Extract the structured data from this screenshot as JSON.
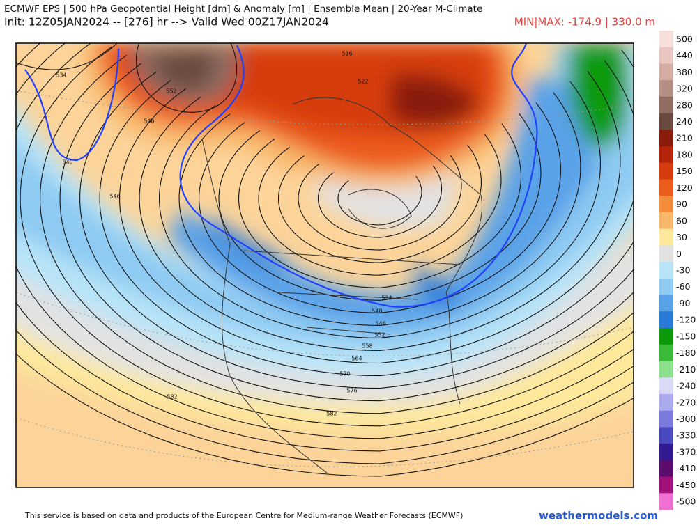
{
  "header": {
    "title": "ECMWF EPS | 500 hPa Geopotential Height [dm] & Anomaly [m] | Ensemble Mean | 20-Year M-Climate",
    "subtitle": "Init: 12Z05JAN2024 -- [276] hr --> Valid Wed 00Z17JAN2024",
    "minmax": "MIN|MAX: -174.9 | 330.0 m"
  },
  "colorbar": {
    "labels": [
      "500",
      "440",
      "380",
      "320",
      "280",
      "240",
      "210",
      "180",
      "150",
      "120",
      "90",
      "60",
      "30",
      "0",
      "-30",
      "-60",
      "-90",
      "-120",
      "-150",
      "-180",
      "-210",
      "-240",
      "-270",
      "-300",
      "-330",
      "-370",
      "-410",
      "-450",
      "-500"
    ],
    "colors": [
      "#f6dedb",
      "#e9c6c0",
      "#d4aca4",
      "#b48e84",
      "#906c62",
      "#6a4a40",
      "#8a1c0c",
      "#b42408",
      "#d63c10",
      "#ec5c1c",
      "#f48c3c",
      "#f8b86c",
      "#fde89c",
      "#e2e2e2",
      "#b8e4f8",
      "#8ecaf2",
      "#5aa2e8",
      "#2a7ad8",
      "#0a9a0a",
      "#3abc3a",
      "#8ce08c",
      "#dadaf6",
      "#aaaaec",
      "#7a7adc",
      "#4a4ac0",
      "#321a90",
      "#5c0c6c",
      "#a2107c",
      "#f070d2"
    ]
  },
  "contour_labels": [
    "534",
    "540",
    "546",
    "552",
    "546",
    "516",
    "522",
    "582",
    "582",
    "576",
    "570",
    "564",
    "558",
    "552",
    "546",
    "540",
    "534"
  ],
  "footer": {
    "disclaimer": "This service is based on data and products of the European Centre for Medium-range Weather Forecasts (ECMWF)",
    "source": "weathermodels.com"
  }
}
